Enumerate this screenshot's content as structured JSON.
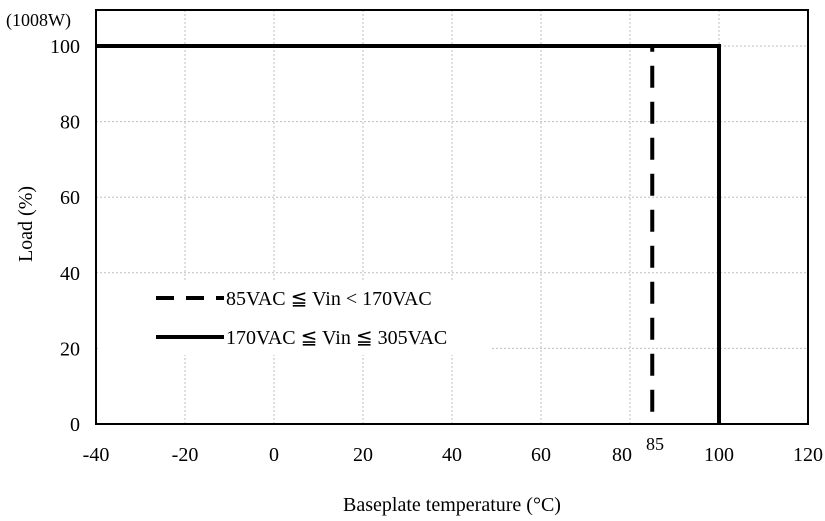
{
  "chart_data": {
    "type": "line",
    "title": "",
    "xlabel": "Baseplate temperature (°C)",
    "ylabel": "Load (%)",
    "xlim": [
      -40,
      120
    ],
    "ylim": [
      0,
      100
    ],
    "xticks": [
      -40,
      -20,
      0,
      20,
      40,
      60,
      80,
      100,
      120
    ],
    "yticks": [
      0,
      20,
      40,
      60,
      80,
      100
    ],
    "grid": true,
    "legend_position": "lower-left",
    "top_annotation": "(1008W)",
    "extra_x_label": "85",
    "series": [
      {
        "name": "85VAC ≦ Vin < 170VAC",
        "style": "dashed",
        "color": "#000000",
        "x": [
          -40,
          85,
          85
        ],
        "y": [
          100,
          100,
          0
        ]
      },
      {
        "name": "170VAC ≦ Vin ≦ 305VAC",
        "style": "solid",
        "color": "#000000",
        "x": [
          -40,
          100,
          100
        ],
        "y": [
          100,
          100,
          0
        ]
      }
    ]
  }
}
